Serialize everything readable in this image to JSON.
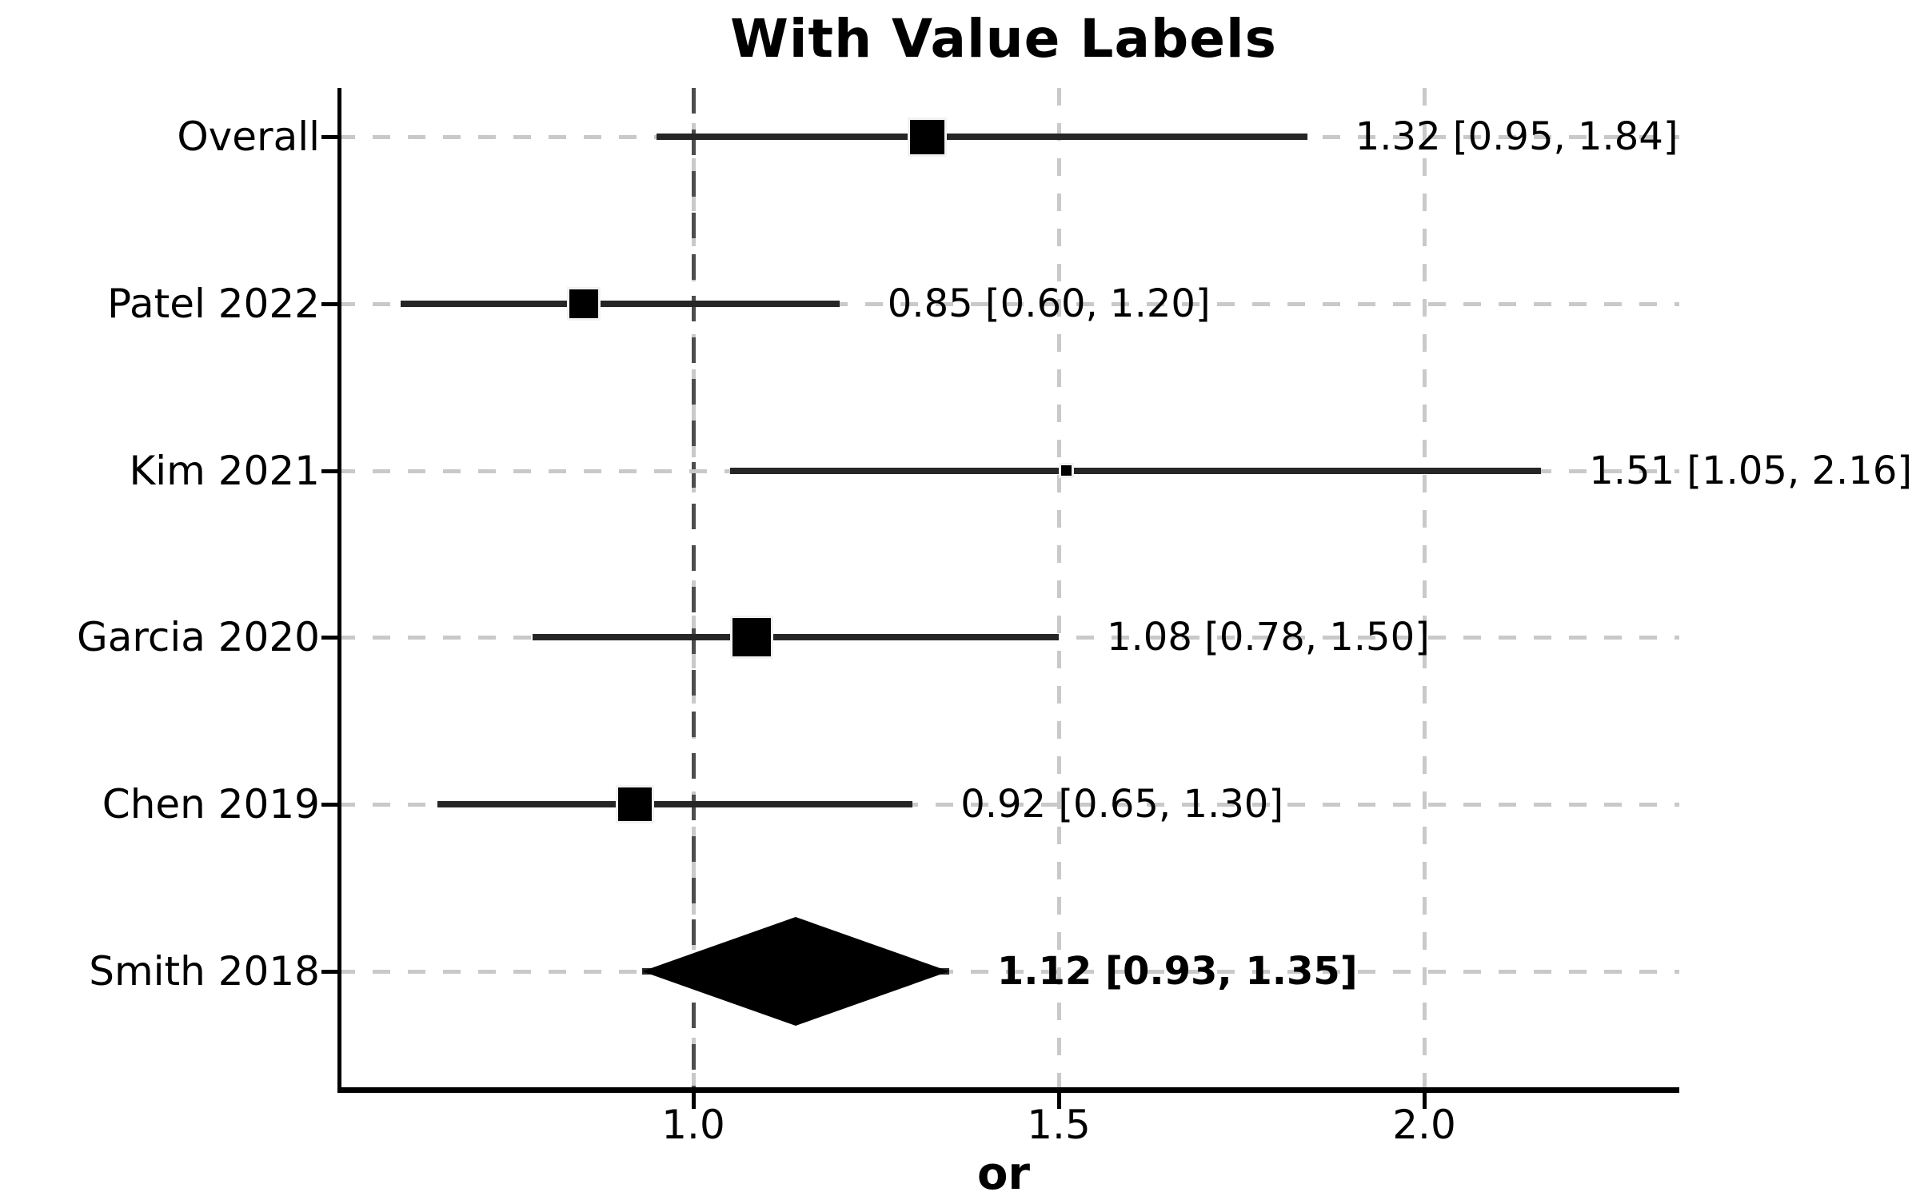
{
  "chart_data": {
    "type": "forest",
    "title": "With Value Labels",
    "xlabel": "or",
    "x_ticks": [
      "1.0",
      "1.5",
      "2.0"
    ],
    "x_tick_values": [
      1.0,
      1.5,
      2.0
    ],
    "x_range": [
      0.52,
      2.35
    ],
    "reference_line": 1.0,
    "grid": true,
    "legend": "none",
    "rows": [
      {
        "label": "Overall",
        "value": 1.32,
        "ci_low": 0.95,
        "ci_high": 1.84,
        "value_label": "1.32 [0.95, 1.84]",
        "marker": "square",
        "marker_size": 43,
        "bold": false
      },
      {
        "label": "Patel 2022",
        "value": 0.85,
        "ci_low": 0.6,
        "ci_high": 1.2,
        "value_label": "0.85 [0.60, 1.20]",
        "marker": "square",
        "marker_size": 36,
        "bold": false
      },
      {
        "label": "Kim 2021",
        "value": 1.51,
        "ci_low": 1.05,
        "ci_high": 2.16,
        "value_label": "1.51 [1.05, 2.16]",
        "marker": "square",
        "marker_size": 13,
        "bold": false
      },
      {
        "label": "Garcia 2020",
        "value": 1.08,
        "ci_low": 0.78,
        "ci_high": 1.5,
        "value_label": "1.08 [0.78, 1.50]",
        "marker": "square",
        "marker_size": 48,
        "bold": false
      },
      {
        "label": "Chen 2019",
        "value": 0.92,
        "ci_low": 0.65,
        "ci_high": 1.3,
        "value_label": "0.92 [0.65, 1.30]",
        "marker": "square",
        "marker_size": 42,
        "bold": false
      },
      {
        "label": "Smith 2018",
        "value": 1.12,
        "ci_low": 0.93,
        "ci_high": 1.35,
        "value_label": "1.12 [0.93, 1.35]",
        "marker": "diamond",
        "marker_size": 136,
        "bold": true
      }
    ]
  },
  "colors": {
    "ci": "#262626",
    "marker": "#000000",
    "grid": "#c9c9c9",
    "reference": "#4d4d4d",
    "axis": "#000000",
    "text": "#000000"
  }
}
